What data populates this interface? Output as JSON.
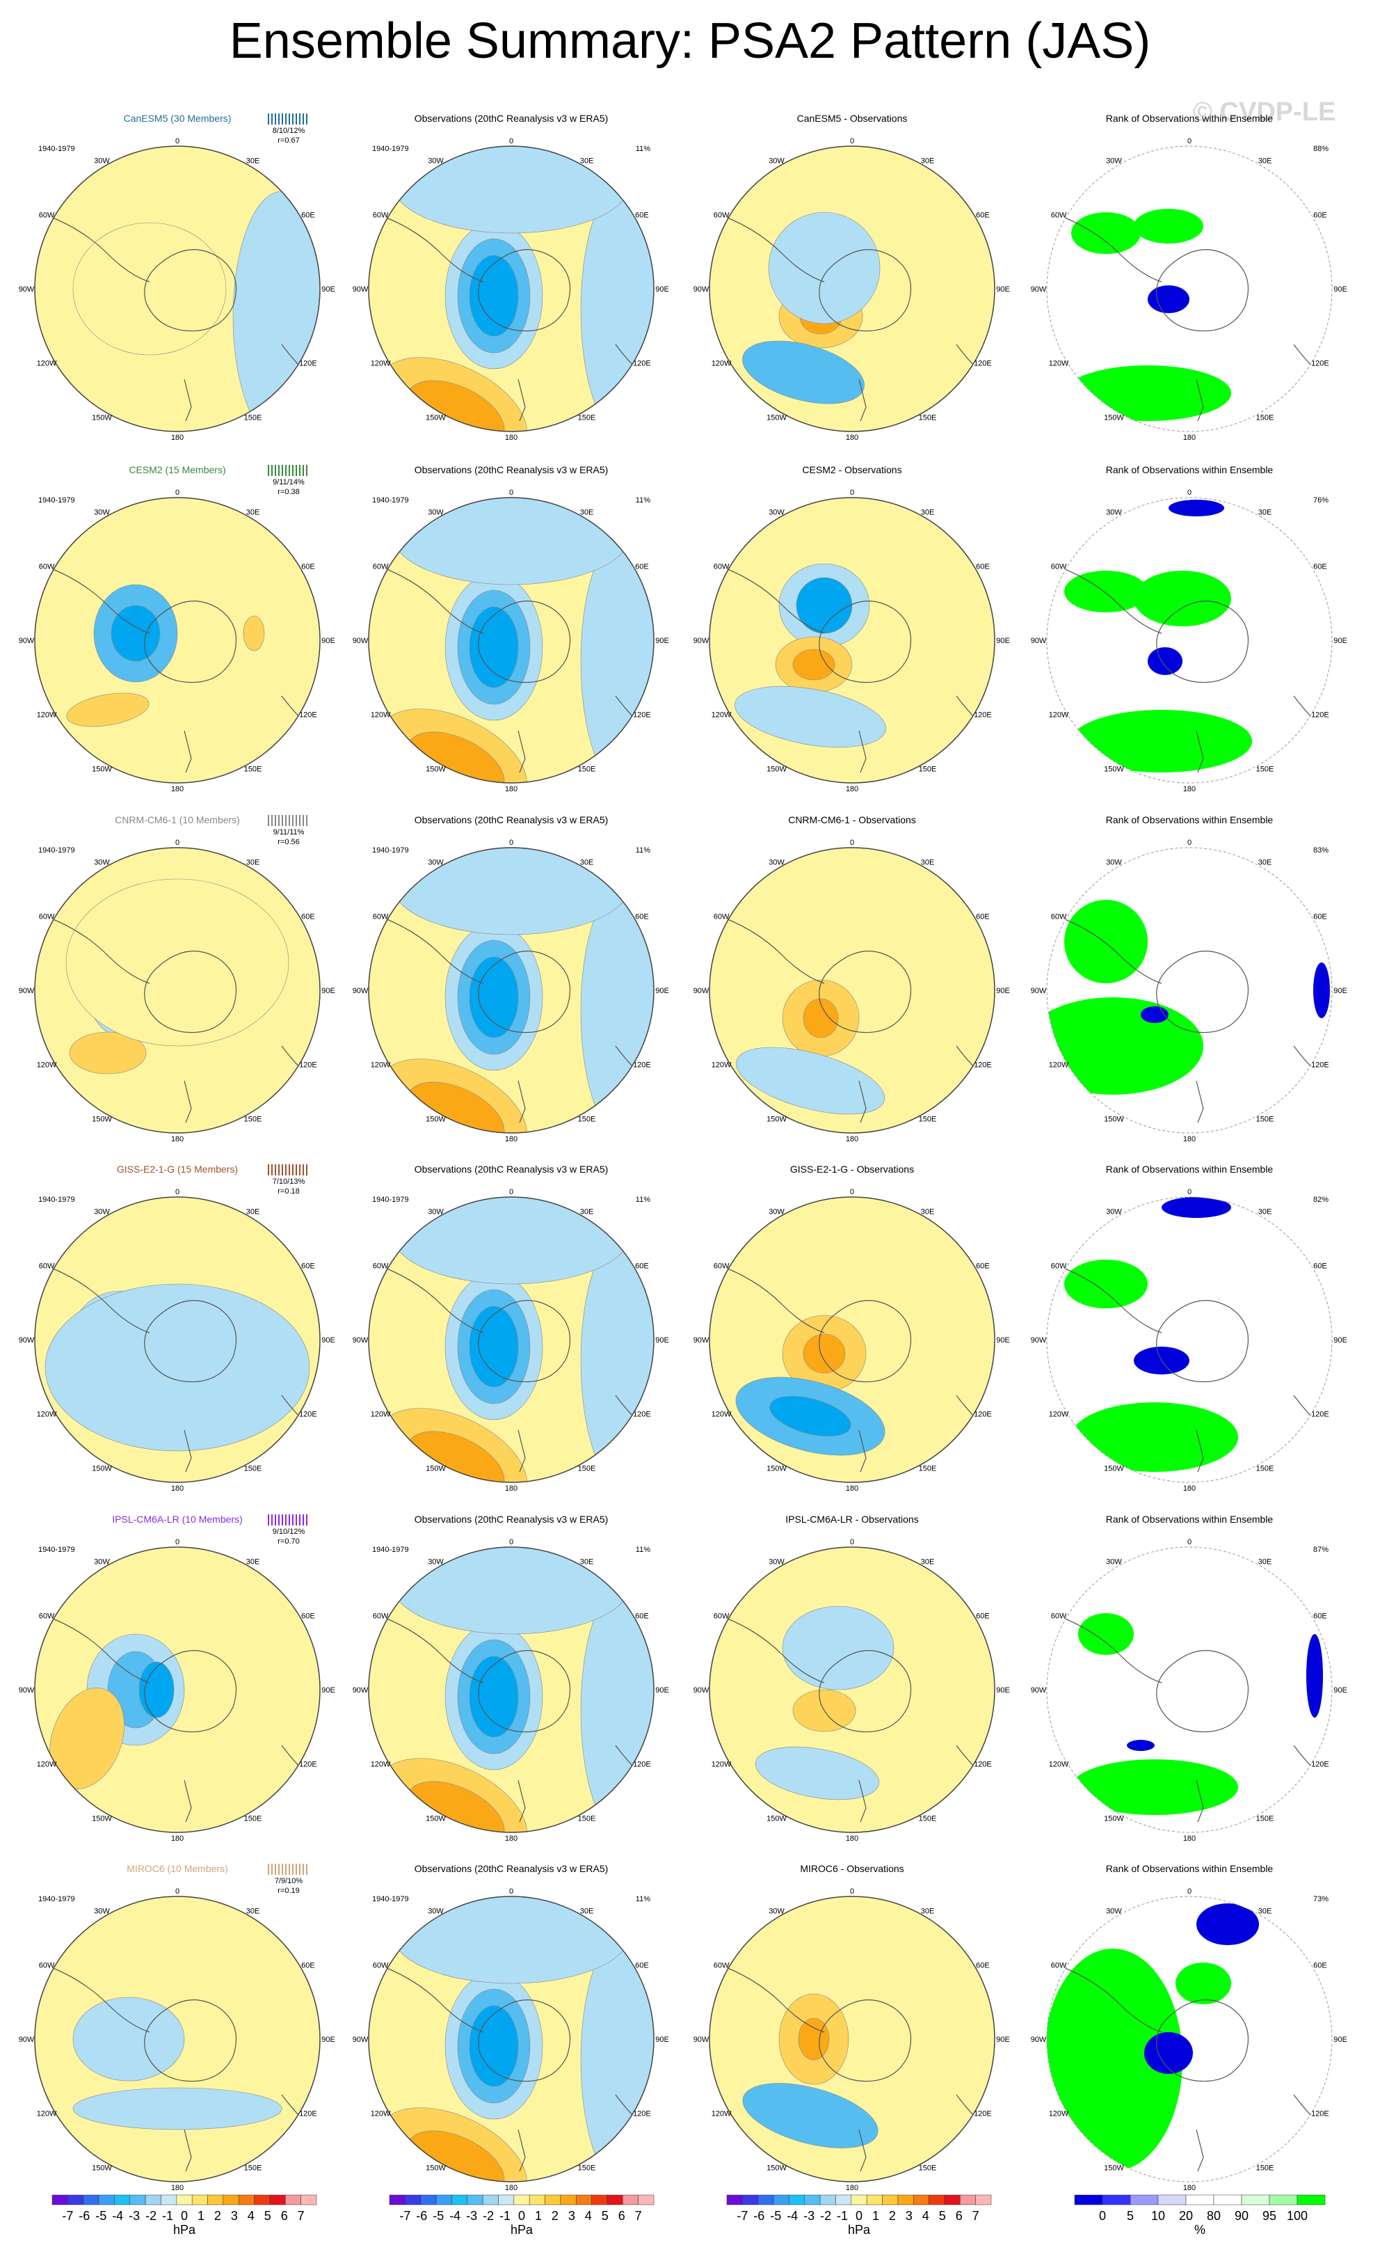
{
  "title": "Ensemble Summary: PSA2 Pattern (JAS)",
  "watermark": "© CVDP-LE",
  "period": "1940-1979",
  "obs_title": "Observations (20thC Reanalysis v3 w ERA5)",
  "obs_percent": "11%",
  "rank_title": "Rank of Observations within Ensemble",
  "lon_labels": [
    "0",
    "30E",
    "60E",
    "90E",
    "120E",
    "150E",
    "180",
    "150W",
    "120W",
    "90W",
    "60W",
    "30W"
  ],
  "colors": {
    "neg_strong": "#00a6f0",
    "neg_mid": "#55bdf0",
    "neg_weak": "#b0def5",
    "pos_weak": "#fdf5a0",
    "pos_mid": "#fdd35a",
    "pos_strong": "#fba816",
    "rank_high": "#00ff00",
    "rank_low": "#0000dd"
  },
  "rows": [
    {
      "model": "CanESM5 (30 Members)",
      "color": "#1e6f9a",
      "stats": "8/10/12%",
      "r": "r=0.67",
      "diff_title": "CanESM5 - Observations",
      "rank_pct": "88%"
    },
    {
      "model": "CESM2 (15 Members)",
      "color": "#3a8a3a",
      "stats": "9/11/14%",
      "r": "r=0.38",
      "diff_title": "CESM2 - Observations",
      "rank_pct": "76%"
    },
    {
      "model": "CNRM-CM6-1 (10 Members)",
      "color": "#888888",
      "stats": "9/11/11%",
      "r": "r=0.56",
      "diff_title": "CNRM-CM6-1 - Observations",
      "rank_pct": "83%"
    },
    {
      "model": "GISS-E2-1-G (15 Members)",
      "color": "#a0522d",
      "stats": "7/10/13%",
      "r": "r=0.18",
      "diff_title": "GISS-E2-1-G - Observations",
      "rank_pct": "82%"
    },
    {
      "model": "IPSL-CM6A-LR (10 Members)",
      "color": "#8a2be2",
      "stats": "9/10/12%",
      "r": "r=0.70",
      "diff_title": "IPSL-CM6A-LR - Observations",
      "rank_pct": "87%"
    },
    {
      "model": "MIROC6 (10 Members)",
      "color": "#d2a679",
      "stats": "7/9/10%",
      "r": "r=0.19",
      "diff_title": "MIROC6 - Observations",
      "rank_pct": "73%"
    }
  ],
  "chart_data": {
    "type": "heatmap",
    "projection": "south polar stereographic",
    "units": "hPa",
    "colorbar_hpa": {
      "labels": [
        "-7",
        "-6",
        "-5",
        "-4",
        "-3",
        "-2",
        "-1",
        "0",
        "1",
        "2",
        "3",
        "4",
        "5",
        "6",
        "7"
      ],
      "unit_label": "hPa",
      "colors": [
        "#6a0dd6",
        "#3a3ae6",
        "#2f6ff0",
        "#3aa0f5",
        "#1ec0f5",
        "#55bdf0",
        "#9fd6f2",
        "#c9e8f5",
        "#fdf5a0",
        "#fde46a",
        "#fdc83a",
        "#fba816",
        "#f57b12",
        "#ef3a10",
        "#e3141c",
        "#f59aa0",
        "#fbb6b6"
      ]
    },
    "colorbar_rank": {
      "labels": [
        "0",
        "5",
        "10",
        "20",
        "80",
        "90",
        "95",
        "100"
      ],
      "unit_label": "%",
      "colors": [
        "#0000dd",
        "#3333ff",
        "#9999ff",
        "#d8d8ff",
        "#ffffff",
        "#ffffff",
        "#d8ffd8",
        "#a0ffa0",
        "#00ff00"
      ]
    }
  }
}
